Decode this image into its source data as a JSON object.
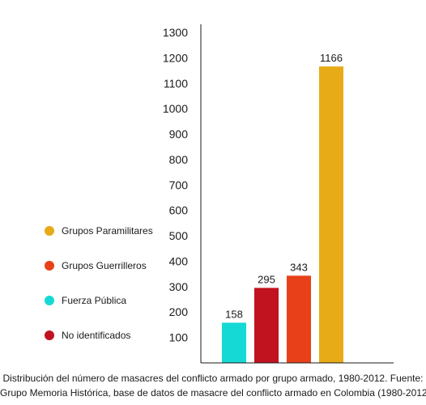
{
  "chart_data": {
    "type": "bar",
    "categories": [
      "No identificados",
      "Fuerza Pública",
      "Grupos Guerrilleros",
      "Grupos Paramilitares"
    ],
    "values": [
      295,
      158,
      343,
      1166
    ],
    "colors": [
      "#c1121f",
      "#14d9d4",
      "#e8411a",
      "#e6ab17"
    ],
    "bar_order": [
      1,
      0,
      2,
      3
    ],
    "yticks": [
      100,
      200,
      300,
      400,
      500,
      600,
      700,
      800,
      900,
      1000,
      1100,
      1200,
      1300
    ],
    "ylim": [
      0,
      1300
    ],
    "grid": false,
    "legend": {
      "position": "left",
      "items": [
        {
          "label": "Grupos Paramilitares",
          "color": "#e6ab17"
        },
        {
          "label": "Grupos Guerrilleros",
          "color": "#e8411a"
        },
        {
          "label": "Fuerza Pública",
          "color": "#14d9d4"
        },
        {
          "label": "No identificados",
          "color": "#c1121f"
        }
      ]
    },
    "caption": [
      "Distribución del número de masacres del conflicto armado por grupo armado, 1980-2012. Fuente:",
      "Grupo Memoria Histórica, base de datos de masacre del conflicto armado en Colombia (1980-2012)"
    ]
  }
}
